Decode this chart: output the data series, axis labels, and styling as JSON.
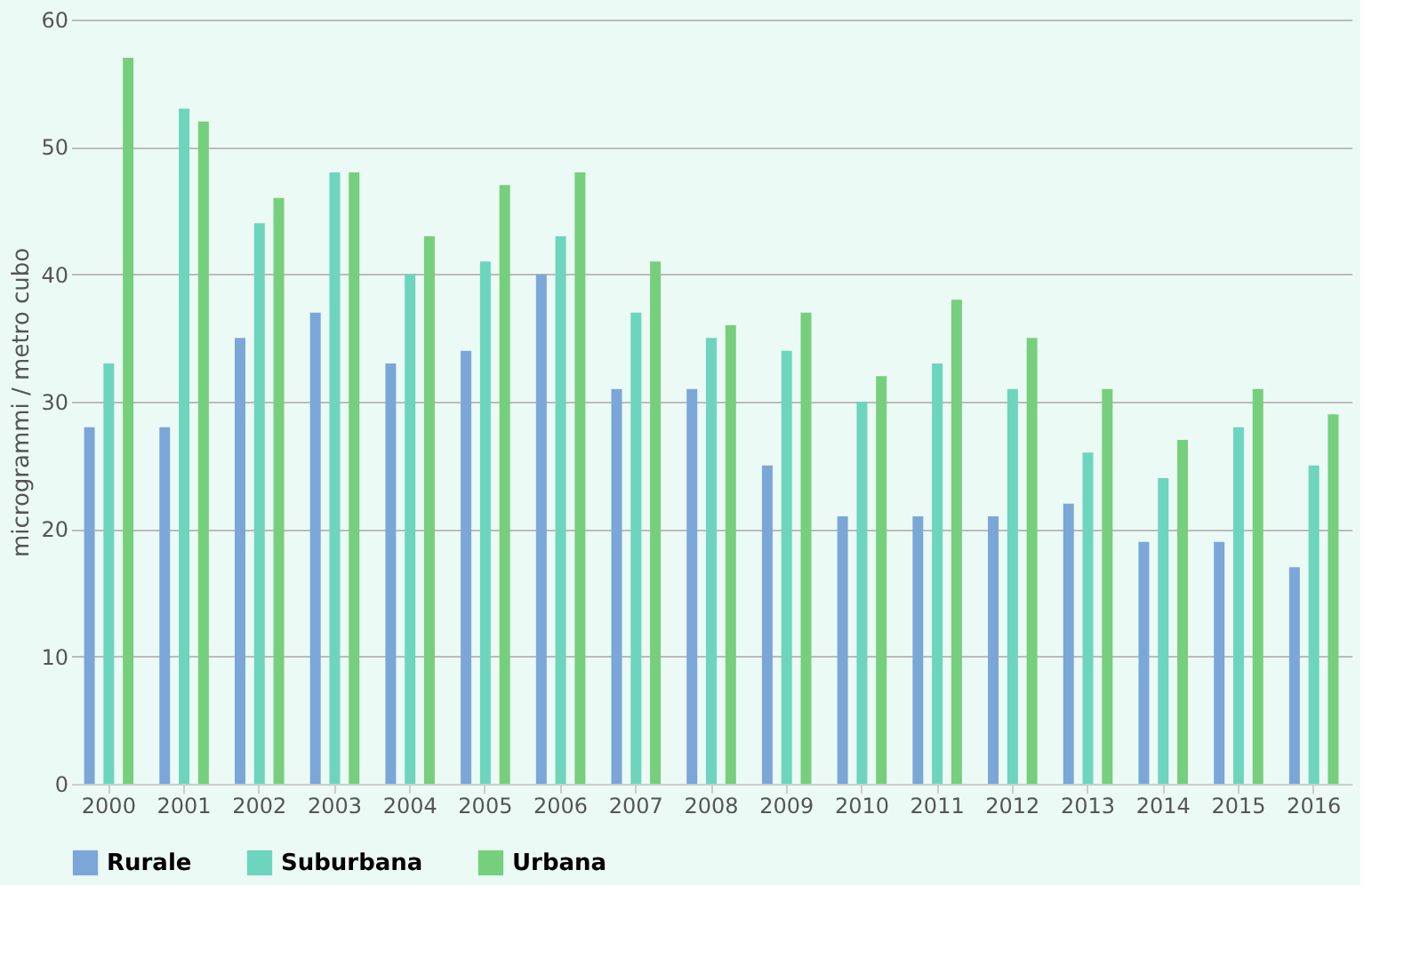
{
  "chart_data": {
    "type": "bar",
    "ylabel": "microgrammi / metro cubo",
    "categories": [
      "2000",
      "2001",
      "2002",
      "2003",
      "2004",
      "2005",
      "2006",
      "2007",
      "2008",
      "2009",
      "2010",
      "2011",
      "2012",
      "2013",
      "2014",
      "2015",
      "2016"
    ],
    "series": [
      {
        "name": "Rurale",
        "color": "#7ba7d8",
        "values": [
          28,
          28,
          35,
          37,
          33,
          34,
          40,
          31,
          31,
          25,
          21,
          21,
          21,
          22,
          19,
          19,
          17
        ]
      },
      {
        "name": "Suburbana",
        "color": "#6dd5bd",
        "values": [
          33,
          53,
          44,
          48,
          40,
          41,
          43,
          37,
          35,
          34,
          30,
          33,
          31,
          26,
          24,
          28,
          25
        ]
      },
      {
        "name": "Urbana",
        "color": "#76cf7c",
        "values": [
          57,
          52,
          46,
          48,
          43,
          47,
          48,
          41,
          36,
          37,
          32,
          38,
          35,
          31,
          27,
          31,
          29
        ]
      }
    ],
    "ylim": [
      0,
      60
    ],
    "yticks": [
      0,
      10,
      20,
      30,
      40,
      50,
      60
    ],
    "grid": "y",
    "legend": "bottom"
  }
}
